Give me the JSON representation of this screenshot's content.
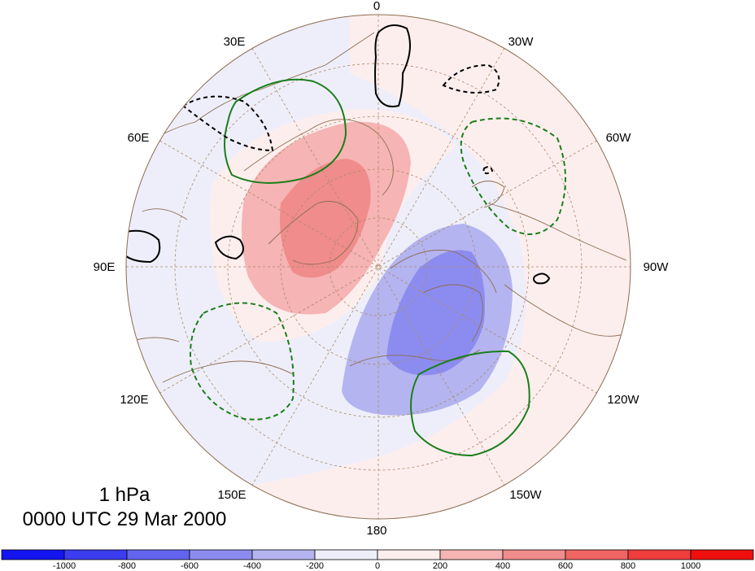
{
  "map": {
    "projection": "polar stereographic (north)",
    "longitude_labels": [
      "0",
      "30W",
      "60W",
      "90W",
      "120W",
      "150W",
      "180",
      "150E",
      "120E",
      "90E",
      "60E",
      "30E"
    ],
    "caption_level": "1 hPa",
    "caption_time": "0000 UTC 29 Mar 2000",
    "colors": {
      "land_outline": "#8b6d4f",
      "grid": "#a88a65",
      "positive_contour_solid": "#000000",
      "negative_contour_dashed": "#000000",
      "green_contour": "#1a7f1a"
    }
  },
  "colorbar": {
    "labels": [
      "-1000",
      "-800",
      "-600",
      "-400",
      "-200",
      "0",
      "200",
      "400",
      "600",
      "800",
      "1000"
    ],
    "colors": [
      "#1414f0",
      "#3c3cf0",
      "#6464f0",
      "#8c8cf0",
      "#b4b4f0",
      "#eeeefa",
      "#fdeeee",
      "#f6b4b4",
      "#f08c8c",
      "#f06464",
      "#f03c3c",
      "#f00f0f"
    ]
  }
}
